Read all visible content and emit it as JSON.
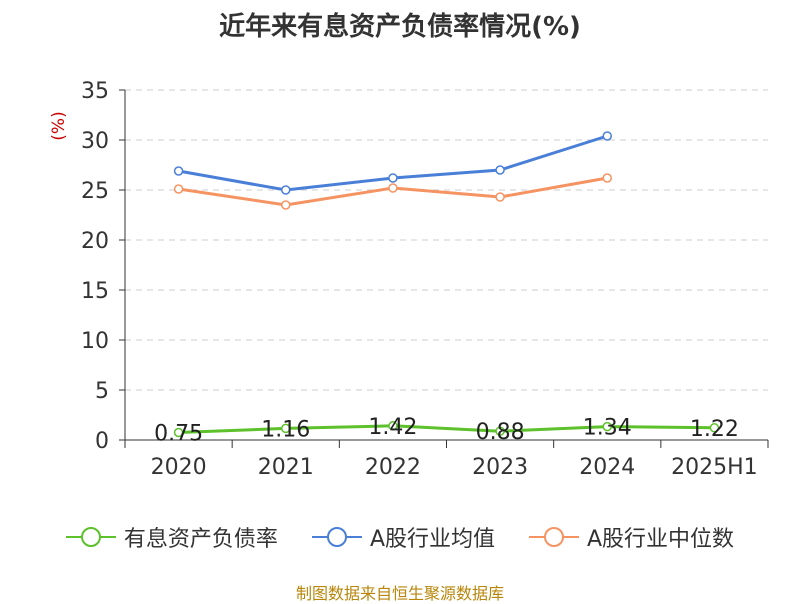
{
  "chart_data": {
    "type": "line",
    "title": "近年来有息资产负债率情况(%)",
    "ylabel": "(%)",
    "categories": [
      "2020",
      "2021",
      "2022",
      "2023",
      "2024",
      "2025H1"
    ],
    "ylim": [
      0,
      35
    ],
    "yticks": [
      0,
      5,
      10,
      15,
      20,
      25,
      30,
      35
    ],
    "grid": true,
    "legend": "bottom",
    "series": [
      {
        "name": "有息资产负债率",
        "color": "#5cc12b",
        "values": [
          0.75,
          1.16,
          1.42,
          0.88,
          1.34,
          1.22
        ],
        "labels": [
          "0.75",
          "1.16",
          "1.42",
          "0.88",
          "1.34",
          "1.22"
        ]
      },
      {
        "name": "A股行业均值",
        "color": "#4a7fd8",
        "values": [
          26.9,
          25.0,
          26.2,
          27.0,
          30.4,
          null
        ]
      },
      {
        "name": "A股行业中位数",
        "color": "#f59462",
        "values": [
          25.1,
          23.5,
          25.2,
          24.3,
          26.2,
          null
        ]
      }
    ]
  },
  "source": "制图数据来自恒生聚源数据库"
}
